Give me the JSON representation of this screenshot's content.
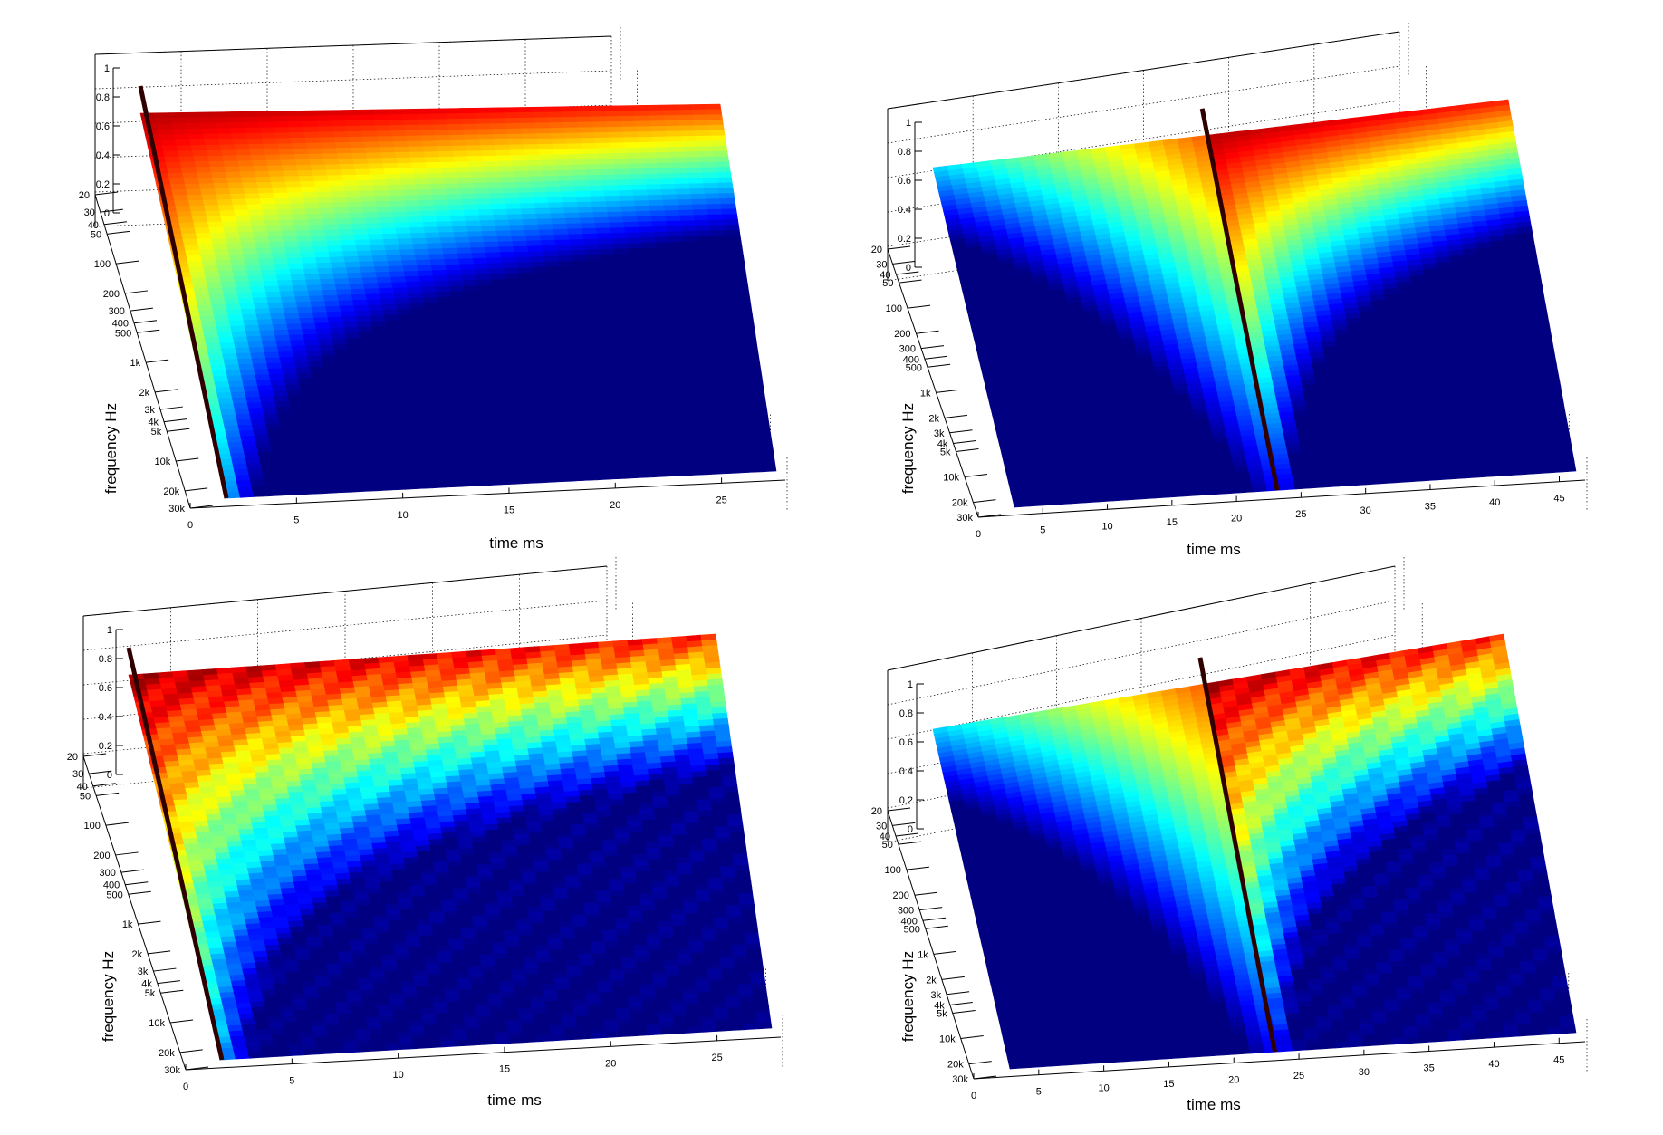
{
  "chart_data": [
    {
      "type": "surface",
      "panel": "top-left",
      "xlabel": "time   ms",
      "ylabel": "frequency   Hz",
      "x_ticks": [
        "0",
        "5",
        "10",
        "15",
        "20",
        "25"
      ],
      "y_ticks": [
        "20",
        "30",
        "40",
        "50",
        "100",
        "200",
        "300",
        "400",
        "500",
        "1k",
        "2k",
        "3k",
        "4k",
        "5k",
        "10k",
        "20k",
        "30k"
      ],
      "z_ticks": [
        "0",
        "0.2",
        "0.4",
        "0.6",
        "0.8",
        "1"
      ],
      "xlim": [
        0,
        28
      ],
      "ylim": [
        20,
        30000
      ],
      "yscale": "log",
      "zlim": [
        0,
        1
      ],
      "impulse_time": 0,
      "colormap": "jet",
      "smooth": true
    },
    {
      "type": "surface",
      "panel": "top-right",
      "xlabel": "time   ms",
      "ylabel": "frequency   Hz",
      "x_ticks": [
        "0",
        "5",
        "10",
        "15",
        "20",
        "25",
        "30",
        "35",
        "40",
        "45"
      ],
      "y_ticks": [
        "20",
        "30",
        "40",
        "50",
        "100",
        "200",
        "300",
        "400",
        "500",
        "1k",
        "2k",
        "3k",
        "4k",
        "5k",
        "10k",
        "20k",
        "30k"
      ],
      "z_ticks": [
        "0",
        "0.2",
        "0.4",
        "0.6",
        "0.8",
        "1"
      ],
      "xlim": [
        0,
        47
      ],
      "ylim": [
        20,
        30000
      ],
      "yscale": "log",
      "zlim": [
        0,
        1
      ],
      "impulse_time": 22,
      "colormap": "jet",
      "smooth": true
    },
    {
      "type": "surface",
      "panel": "bottom-left",
      "xlabel": "time   ms",
      "ylabel": "frequency   Hz",
      "x_ticks": [
        "0",
        "5",
        "10",
        "15",
        "20",
        "25"
      ],
      "y_ticks": [
        "20",
        "30",
        "40",
        "50",
        "100",
        "200",
        "300",
        "400",
        "500",
        "1k",
        "2k",
        "3k",
        "4k",
        "5k",
        "10k",
        "20k",
        "30k"
      ],
      "z_ticks": [
        "0",
        "0.2",
        "0.4",
        "0.6",
        "0.8",
        "1"
      ],
      "xlim": [
        0,
        28
      ],
      "ylim": [
        20,
        30000
      ],
      "yscale": "log",
      "zlim": [
        0,
        1
      ],
      "impulse_time": 0,
      "colormap": "jet",
      "smooth": false
    },
    {
      "type": "surface",
      "panel": "bottom-right",
      "xlabel": "time   ms",
      "ylabel": "frequency   Hz",
      "x_ticks": [
        "0",
        "5",
        "10",
        "15",
        "20",
        "25",
        "30",
        "35",
        "40",
        "45"
      ],
      "y_ticks": [
        "20",
        "30",
        "40",
        "50",
        "100",
        "200",
        "300",
        "400",
        "500",
        "1k",
        "2k",
        "3k",
        "4k",
        "5k",
        "10k",
        "20k",
        "30k"
      ],
      "z_ticks": [
        "0",
        "0.2",
        "0.4",
        "0.6",
        "0.8",
        "1"
      ],
      "xlim": [
        0,
        47
      ],
      "ylim": [
        20,
        30000
      ],
      "yscale": "log",
      "zlim": [
        0,
        1
      ],
      "impulse_time": 22,
      "colormap": "jet",
      "smooth": false
    }
  ]
}
